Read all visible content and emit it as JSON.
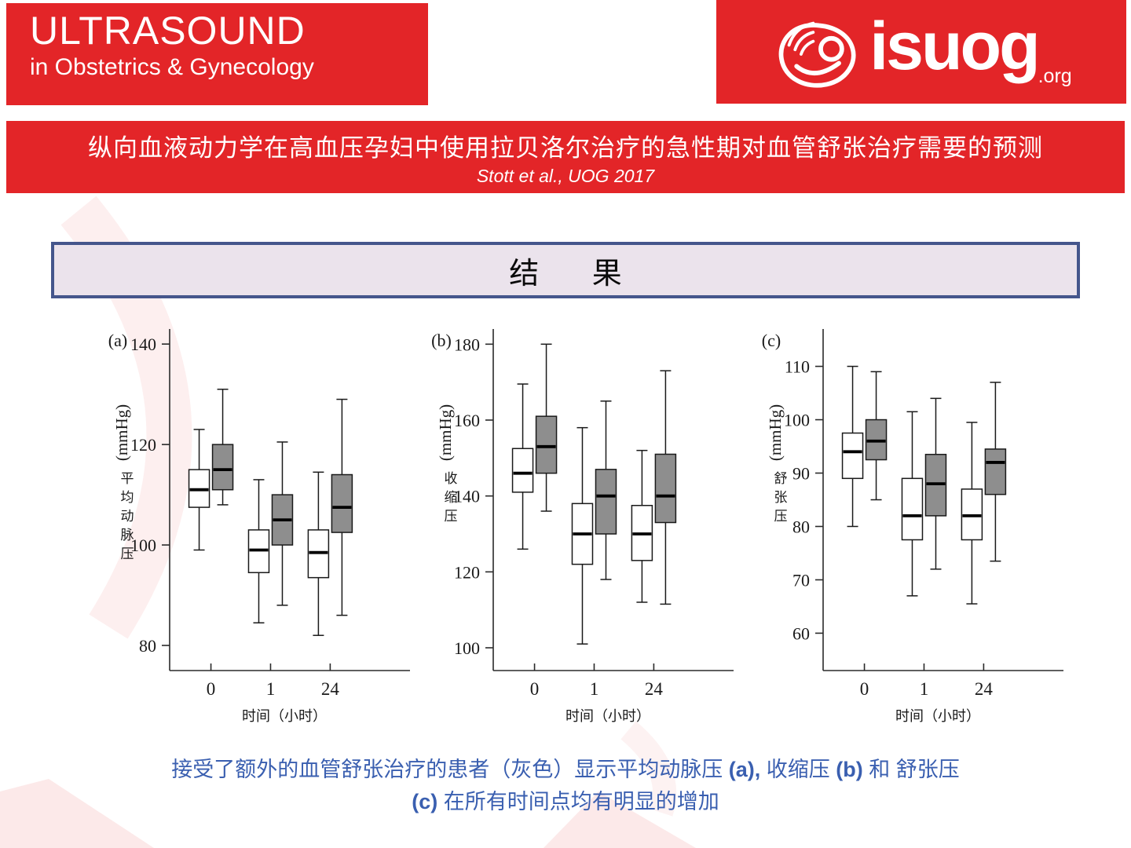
{
  "header": {
    "journal_title_line1": "ULTRASOUND",
    "journal_title_line2": "in Obstetrics & Gynecology",
    "logo_text": "isuog",
    "logo_suffix": ".org",
    "brand_red": "#e32528"
  },
  "banner": {
    "title_cn": "纵向血液动力学在高血压孕妇中使用拉贝洛尔治疗的急性期对血管舒张治疗需要的预测",
    "citation": "Stott et al., UOG 2017"
  },
  "section_box": {
    "label": "结 果"
  },
  "caption": {
    "color": "#3a5fb0",
    "part1": "接受了额外的血管舒张治疗的患者（灰色）显示平均动脉压 ",
    "a": "(a),",
    "part2": " 收缩压 ",
    "b": "(b)",
    "part3": " 和 舒张压",
    "c": "(c)",
    "part4": " 在所有时间点均有明显的增加"
  },
  "chart_data": [
    {
      "type": "boxplot",
      "panel_label": "(a)",
      "unit_label": "(mmHg)",
      "ylabel": "平均动脉压",
      "xlabel": "时间（小时）",
      "categories": [
        "0",
        "1",
        "24"
      ],
      "yticks": [
        80,
        100,
        120,
        140
      ],
      "ylim": [
        75,
        143
      ],
      "grid": false,
      "legend": "none",
      "series": [
        {
          "name": "white",
          "fill": "#ffffff",
          "boxes": [
            [
              99,
              107.5,
              111,
              115,
              123
            ],
            [
              84.5,
              94.5,
              99,
              103,
              113
            ],
            [
              82,
              93.5,
              98.5,
              103,
              114.5
            ]
          ]
        },
        {
          "name": "gray",
          "fill": "#8e8e8e",
          "boxes": [
            [
              108,
              111,
              115,
              120,
              131
            ],
            [
              88,
              100,
              105,
              110,
              120.5
            ],
            [
              86,
              102.5,
              107.5,
              114,
              129
            ]
          ]
        }
      ]
    },
    {
      "type": "boxplot",
      "panel_label": "(b)",
      "unit_label": "(mmHg)",
      "ylabel": "收缩压",
      "xlabel": "时间（小时）",
      "categories": [
        "0",
        "1",
        "24"
      ],
      "yticks": [
        100,
        120,
        140,
        160,
        180
      ],
      "ylim": [
        94,
        184
      ],
      "grid": false,
      "legend": "none",
      "series": [
        {
          "name": "white",
          "fill": "#ffffff",
          "boxes": [
            [
              126,
              141,
              146,
              152.5,
              169.5
            ],
            [
              101,
              122,
              130,
              138,
              158
            ],
            [
              112,
              123,
              130,
              137.5,
              152
            ]
          ]
        },
        {
          "name": "gray",
          "fill": "#8e8e8e",
          "boxes": [
            [
              136,
              146,
              153,
              161,
              180
            ],
            [
              118,
              130,
              140,
              147,
              165
            ],
            [
              111.5,
              133,
              140,
              151,
              173
            ]
          ]
        }
      ]
    },
    {
      "type": "boxplot",
      "panel_label": "(c)",
      "unit_label": "(mmHg)",
      "ylabel": "舒张压",
      "xlabel": "时间（小时）",
      "categories": [
        "0",
        "1",
        "24"
      ],
      "yticks": [
        60,
        70,
        80,
        90,
        100,
        110
      ],
      "ylim": [
        53,
        117
      ],
      "grid": false,
      "legend": "none",
      "series": [
        {
          "name": "white",
          "fill": "#ffffff",
          "boxes": [
            [
              80,
              89,
              94,
              97.5,
              110
            ],
            [
              67,
              77.5,
              82,
              89,
              101.5
            ],
            [
              65.5,
              77.5,
              82,
              87,
              99.5
            ]
          ]
        },
        {
          "name": "gray",
          "fill": "#8e8e8e",
          "boxes": [
            [
              85,
              92.5,
              96,
              100,
              109
            ],
            [
              72,
              82,
              88,
              93.5,
              104
            ],
            [
              73.5,
              86,
              92,
              94.5,
              107
            ]
          ]
        }
      ]
    }
  ]
}
